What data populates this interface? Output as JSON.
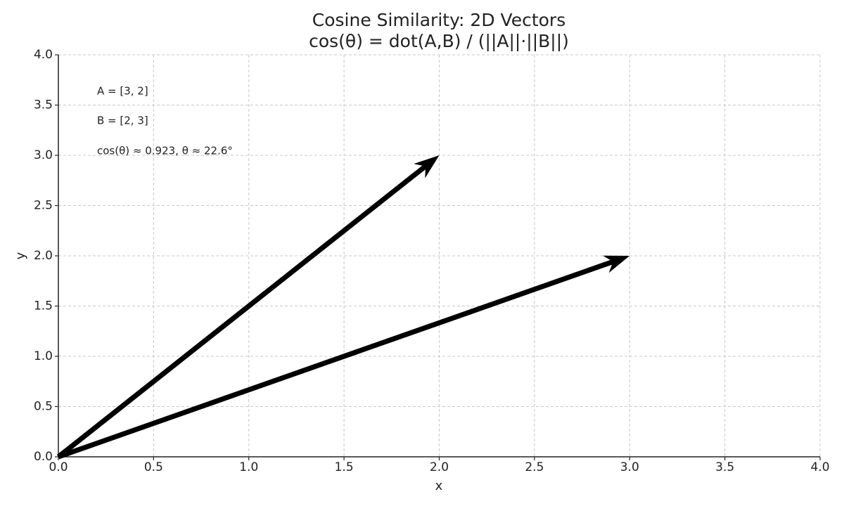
{
  "chart_data": {
    "type": "quiver",
    "title": "Cosine Similarity: 2D Vectors",
    "subtitle": "cos(θ) = dot(A,B) / (||A||·||B||)",
    "x_label": "x",
    "y_label": "y",
    "vectors": [
      {
        "x": 3,
        "y": 2
      },
      {
        "x": 2,
        "y": 3
      }
    ],
    "color": "#000000",
    "annotations": [
      "A = [3, 2]",
      "B = [2, 3]",
      "cos(θ) ≈ 0.923,  θ ≈ 22.6°"
    ],
    "xlim": [
      0,
      4
    ],
    "ylim": [
      0,
      4
    ],
    "xticks": [
      {
        "value": 0,
        "label": "0.0"
      },
      0.5,
      {
        "value": 1,
        "label": "1.0"
      },
      1.5,
      {
        "value": 2,
        "label": "2.0"
      },
      2.5,
      {
        "value": 3,
        "label": "3.0"
      },
      3.5,
      {
        "value": 4,
        "label": "4.0"
      }
    ],
    "yticks": [
      {
        "value": 0,
        "label": "0.0"
      },
      0.5,
      {
        "value": 1,
        "label": "1.0"
      },
      1.5,
      {
        "value": 2,
        "label": "2.0"
      },
      2.5,
      {
        "value": 3,
        "label": "3.0"
      },
      3.5,
      {
        "value": 4,
        "label": "4.0"
      }
    ],
    "grid": true
  }
}
